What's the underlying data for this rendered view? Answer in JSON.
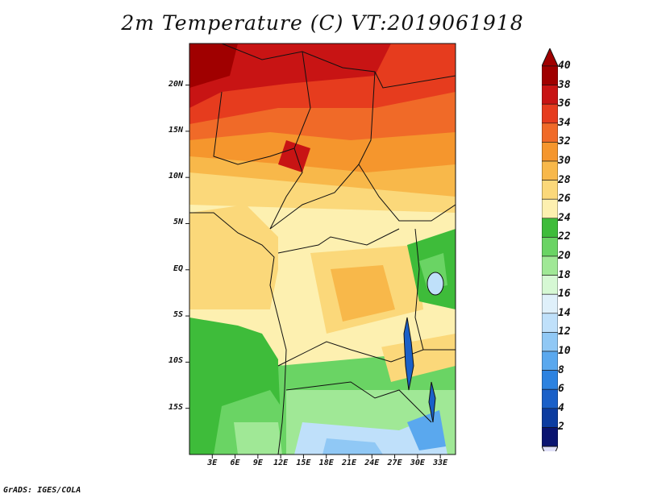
{
  "title": "2m Temperature (C) VT:2019061918",
  "footer": "GrADS: IGES/COLA",
  "map": {
    "y_ticks": [
      {
        "label": "20N",
        "lat": 20
      },
      {
        "label": "15N",
        "lat": 15
      },
      {
        "label": "10N",
        "lat": 10
      },
      {
        "label": "5N",
        "lat": 5
      },
      {
        "label": "EQ",
        "lat": 0
      },
      {
        "label": "5S",
        "lat": -5
      },
      {
        "label": "10S",
        "lat": -10
      },
      {
        "label": "15S",
        "lat": -15
      }
    ],
    "x_ticks": [
      {
        "label": "3E",
        "lon": 3
      },
      {
        "label": "6E",
        "lon": 6
      },
      {
        "label": "9E",
        "lon": 9
      },
      {
        "label": "12E",
        "lon": 12
      },
      {
        "label": "15E",
        "lon": 15
      },
      {
        "label": "18E",
        "lon": 18
      },
      {
        "label": "21E",
        "lon": 21
      },
      {
        "label": "24E",
        "lon": 24
      },
      {
        "label": "27E",
        "lon": 27
      },
      {
        "label": "30E",
        "lon": 30
      },
      {
        "label": "33E",
        "lon": 33
      }
    ],
    "lon_range": [
      0,
      35
    ],
    "lat_range": [
      -20,
      24.5
    ]
  },
  "colorbar": {
    "levels": [
      "40",
      "38",
      "36",
      "34",
      "32",
      "30",
      "28",
      "26",
      "24",
      "22",
      "20",
      "18",
      "16",
      "14",
      "12",
      "10",
      "8",
      "6",
      "4",
      "2"
    ],
    "colors": [
      "#a00000",
      "#c81414",
      "#e63c1e",
      "#f06a28",
      "#f5962d",
      "#f8b84a",
      "#fbd87a",
      "#fdf0b0",
      "#3ebc3a",
      "#6ad464",
      "#a0e896",
      "#d6f8d4",
      "#dff0fa",
      "#bfe0fa",
      "#90c8f5",
      "#5aa8ee",
      "#2c82e0",
      "#1a60c8",
      "#0c3ca0",
      "#0a1470"
    ],
    "top_arrow_color": "#a00000",
    "bottom_arrow_color": "#e0e0f8"
  }
}
